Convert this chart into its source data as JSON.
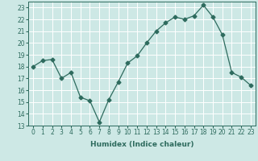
{
  "x": [
    0,
    1,
    2,
    3,
    4,
    5,
    6,
    7,
    8,
    9,
    10,
    11,
    12,
    13,
    14,
    15,
    16,
    17,
    18,
    19,
    20,
    21,
    22,
    23
  ],
  "y": [
    18.0,
    18.5,
    18.6,
    17.0,
    17.5,
    15.4,
    15.1,
    13.3,
    15.2,
    16.7,
    18.3,
    18.9,
    20.0,
    21.0,
    21.7,
    22.2,
    22.0,
    22.3,
    23.2,
    22.2,
    20.7,
    17.5,
    17.1,
    16.4
  ],
  "xlabel": "Humidex (Indice chaleur)",
  "xlim": [
    -0.5,
    23.5
  ],
  "ylim": [
    13,
    23.5
  ],
  "yticks": [
    13,
    14,
    15,
    16,
    17,
    18,
    19,
    20,
    21,
    22,
    23
  ],
  "xticks": [
    0,
    1,
    2,
    3,
    4,
    5,
    6,
    7,
    8,
    9,
    10,
    11,
    12,
    13,
    14,
    15,
    16,
    17,
    18,
    19,
    20,
    21,
    22,
    23
  ],
  "line_color": "#2e6b5e",
  "marker": "D",
  "marker_size": 2.5,
  "bg_color": "#cde8e5",
  "grid_color": "#ffffff",
  "label_fontsize": 6.5,
  "tick_fontsize": 5.5
}
